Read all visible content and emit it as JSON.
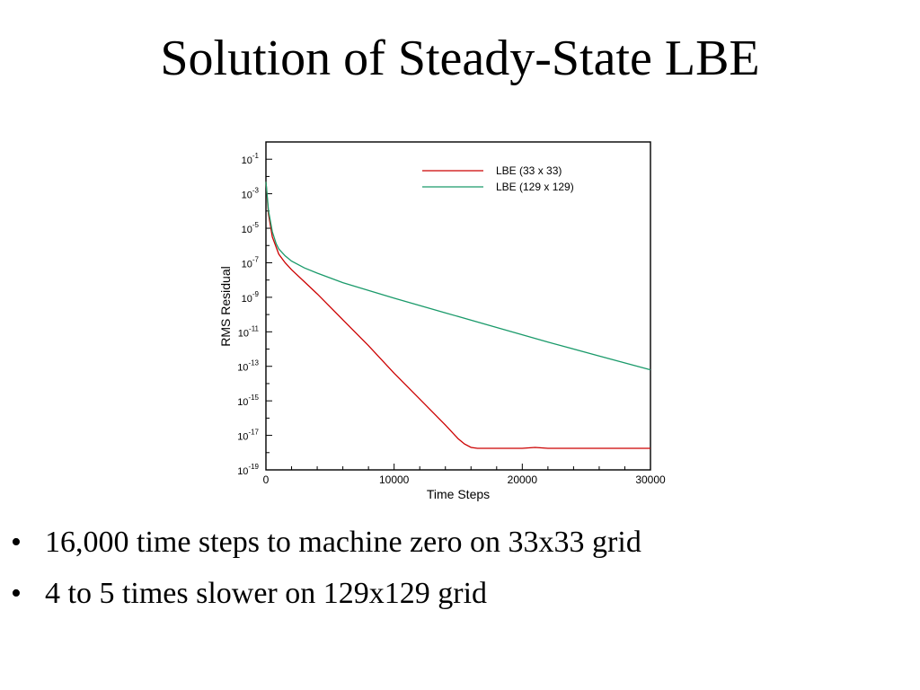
{
  "slide": {
    "title": "Solution of Steady-State LBE",
    "bullets": [
      "16,000 time steps to machine zero on 33x33 grid",
      "4 to 5 times slower on 129x129 grid"
    ],
    "bullet_glyph": "•"
  },
  "chart_data": {
    "type": "line",
    "title": "",
    "xlabel": "Time Steps",
    "ylabel": "RMS Residual",
    "xlim": [
      0,
      30000
    ],
    "ylim_exp": [
      -19,
      0
    ],
    "yscale": "log",
    "grid": false,
    "legend": "top-right",
    "x_ticks": [
      "0",
      "10000",
      "20000",
      "30000"
    ],
    "y_tick_labels": [
      {
        "exp": -1,
        "base": "10",
        "power": "-1"
      },
      {
        "exp": -3,
        "base": "10",
        "power": "-3"
      },
      {
        "exp": -5,
        "base": "10",
        "power": "-5"
      },
      {
        "exp": -7,
        "base": "10",
        "power": "-7"
      },
      {
        "exp": -9,
        "base": "10",
        "power": "-9"
      },
      {
        "exp": -11,
        "base": "10",
        "power": "-11"
      },
      {
        "exp": -13,
        "base": "10",
        "power": "-13"
      },
      {
        "exp": -15,
        "base": "10",
        "power": "-15"
      },
      {
        "exp": -17,
        "base": "10",
        "power": "-17"
      },
      {
        "exp": -19,
        "base": "10",
        "power": "-19"
      }
    ],
    "series": [
      {
        "name": "LBE (33 x 33)",
        "color": "#cc0000",
        "x": [
          0,
          200,
          500,
          1000,
          1500,
          2000,
          3000,
          4000,
          6000,
          8000,
          10000,
          12000,
          14000,
          15000,
          15500,
          16000,
          16500,
          17000,
          18000,
          20000,
          21000,
          22000,
          25000,
          30000
        ],
        "log10_y": [
          -2.3,
          -4.2,
          -5.5,
          -6.5,
          -7.0,
          -7.4,
          -8.1,
          -8.8,
          -10.3,
          -11.8,
          -13.4,
          -14.9,
          -16.4,
          -17.2,
          -17.5,
          -17.7,
          -17.75,
          -17.75,
          -17.75,
          -17.75,
          -17.7,
          -17.75,
          -17.75,
          -17.75
        ]
      },
      {
        "name": "LBE (129 x 129)",
        "color": "#1a9a6a",
        "x": [
          0,
          200,
          500,
          800,
          1000,
          1500,
          2000,
          3000,
          4000,
          6000,
          8000,
          10000,
          14000,
          18000,
          22000,
          26000,
          30000
        ],
        "log10_y": [
          -2.3,
          -4.0,
          -5.2,
          -5.9,
          -6.2,
          -6.6,
          -6.9,
          -7.3,
          -7.6,
          -8.15,
          -8.6,
          -9.05,
          -9.9,
          -10.75,
          -11.6,
          -12.4,
          -13.2
        ]
      }
    ]
  }
}
